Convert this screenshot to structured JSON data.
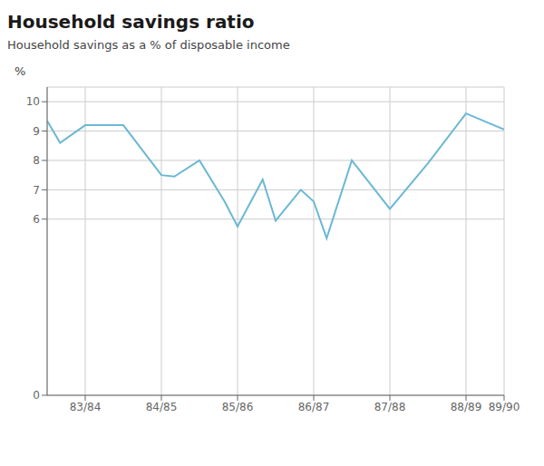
{
  "chart_data": {
    "type": "line",
    "title": "Household savings ratio",
    "subtitle": "Household savings as a % of disposable income",
    "ylabel": "%",
    "x": [
      0.0,
      0.17,
      0.5,
      1.0,
      1.5,
      1.67,
      2.0,
      2.33,
      2.5,
      2.83,
      3.0,
      3.33,
      3.5,
      3.67,
      4.0,
      4.5,
      5.0,
      5.5,
      6.0
    ],
    "values": [
      9.35,
      8.6,
      9.2,
      9.2,
      7.5,
      7.45,
      8.0,
      6.6,
      5.75,
      7.35,
      5.95,
      7.0,
      6.6,
      5.35,
      8.0,
      6.35,
      7.9,
      9.6,
      9.05
    ],
    "color": "#6bb8d4",
    "xlim": [
      0.0,
      6.0
    ],
    "xticks": [
      {
        "value": 0.5,
        "label": "83/84"
      },
      {
        "value": 1.5,
        "label": "84/85"
      },
      {
        "value": 2.5,
        "label": "85/86"
      },
      {
        "value": 3.5,
        "label": "86/87"
      },
      {
        "value": 4.5,
        "label": "87/88"
      },
      {
        "value": 5.5,
        "label": "88/89"
      },
      {
        "value": 6.0,
        "label": "89/90"
      }
    ],
    "ylim": [
      0,
      10.5
    ],
    "yticks": [
      0,
      6,
      7,
      8,
      9,
      10
    ],
    "grid": true
  }
}
